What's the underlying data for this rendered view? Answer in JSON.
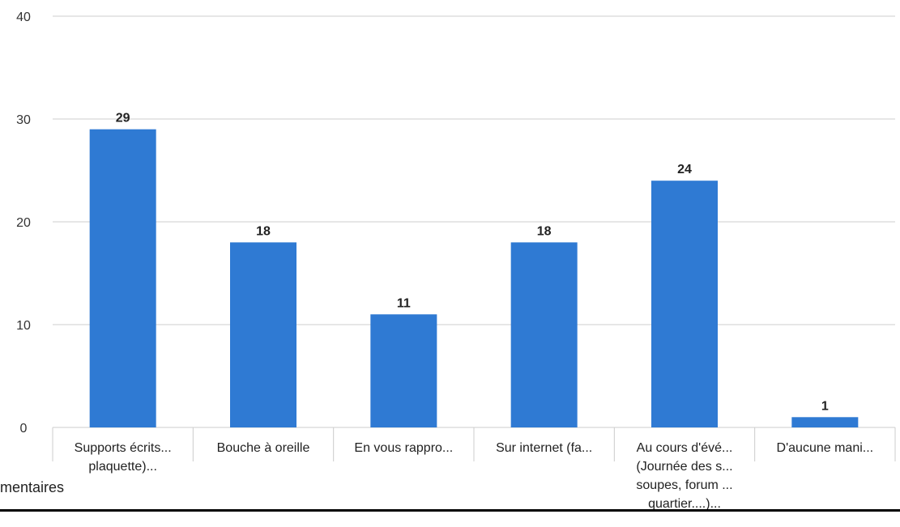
{
  "chart_data": {
    "type": "bar",
    "categories": [
      [
        "Supports écrits...",
        "plaquette)..."
      ],
      [
        "Bouche à oreille"
      ],
      [
        "En vous rappro..."
      ],
      [
        "Sur internet (fa..."
      ],
      [
        "Au cours d'évé...",
        "(Journée des s...",
        "soupes, forum ...",
        "quartier....)..."
      ],
      [
        "D'aucune mani..."
      ]
    ],
    "values": [
      29,
      18,
      11,
      18,
      24,
      1
    ],
    "ylim": [
      0,
      40
    ],
    "yticks": [
      0,
      10,
      20,
      30,
      40
    ],
    "grid": true,
    "bar_color": "#2f7ad3"
  },
  "footer": {
    "text": "mentaires"
  }
}
